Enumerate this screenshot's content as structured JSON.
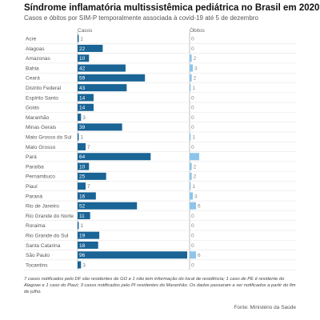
{
  "header": {
    "title": "Síndrome inflamatória multissistêmica pediátrica no Brasil em 2020",
    "subtitle": "Casos e óbitos por SIM-P temporalmente associada à covid-19 até 5 de dezembro"
  },
  "chart_data": {
    "type": "bar",
    "columns": [
      "Casos",
      "Óbitos"
    ],
    "colors": {
      "casos": "#1a6496",
      "obitos": "#8ec4ea"
    },
    "categories": [
      "Acre",
      "Alagoas",
      "Amazonas",
      "Bahia",
      "Ceará",
      "Distrito Federal",
      "Espírito Santo",
      "Goiás",
      "Maranhão",
      "Minas Gerais",
      "Mato Grosso do Sul",
      "Mato Grosso",
      "Pará",
      "Paraíba",
      "Pernambuco",
      "Piauí",
      "Paraná",
      "Rio de Janeiro",
      "Rio Grande do Norte",
      "Roraima",
      "Rio Grande do Sul",
      "Santa Catarina",
      "São Paulo",
      "Tocantins"
    ],
    "series": [
      {
        "name": "Casos",
        "values": [
          1,
          22,
          10,
          42,
          59,
          43,
          14,
          14,
          3,
          39,
          1,
          7,
          64,
          10,
          25,
          7,
          16,
          52,
          11,
          1,
          19,
          18,
          96,
          3
        ]
      },
      {
        "name": "Óbitos",
        "values": [
          0,
          0,
          2,
          3,
          2,
          1,
          0,
          0,
          0,
          0,
          1,
          0,
          9,
          2,
          2,
          1,
          3,
          6,
          0,
          0,
          0,
          0,
          6,
          0
        ]
      }
    ],
    "xlim_casos": [
      0,
      96
    ],
    "xlim_obitos": [
      0,
      9
    ]
  },
  "footer": {
    "note": "7 casos notificados pelo DF são residentes de GO e 1 não tem informação do local de residência; 1 caso de PE é residente do Alagoas e 1 caso do Piauí; 3 casos notificados pelo PI residentes do Maranhão. Os dados passaram a ser notificados a partir do fim de julho.",
    "source": "Fonte: Ministério da Saúde"
  }
}
